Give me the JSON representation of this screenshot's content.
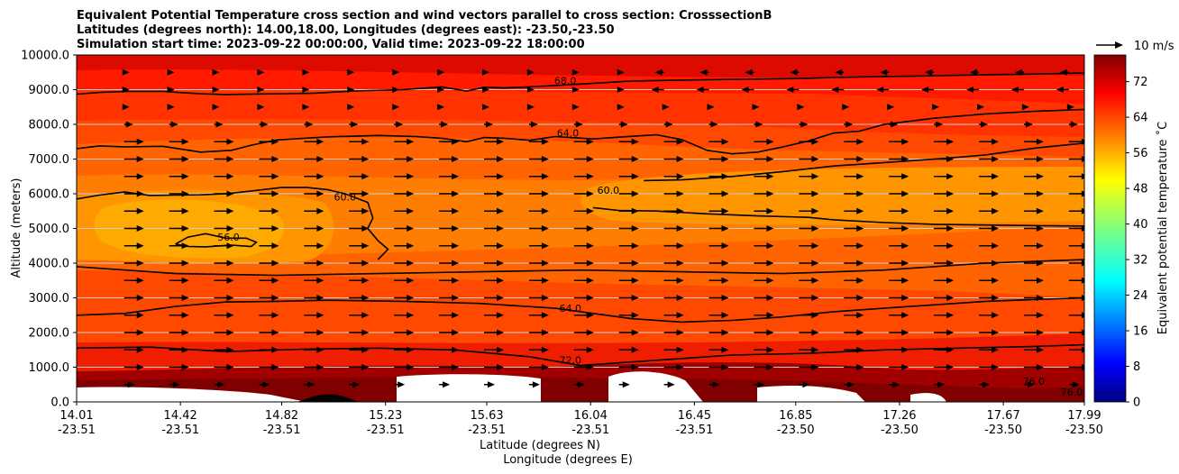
{
  "chart_data": {
    "type": "heatmap",
    "title_lines": [
      "Equivalent Potential Temperature cross section and wind vectors parallel to cross section: CrosssectionB",
      "Latitudes (degrees north): 14.00,18.00, Longitudes (degrees east): -23.50,-23.50",
      "Simulation start time: 2023-09-22 00:00:00, Valid time: 2023-09-22 18:00:00"
    ],
    "ylabel": "Altitude (meters)",
    "xlabel_lat": "Latitude (degrees N)",
    "xlabel_lon": "Longitude (degrees E)",
    "ylim": [
      0,
      10000
    ],
    "yticks": [
      "0.0",
      "1000.0",
      "2000.0",
      "3000.0",
      "4000.0",
      "5000.0",
      "6000.0",
      "7000.0",
      "8000.0",
      "9000.0",
      "10000.0"
    ],
    "ytick_values": [
      0,
      1000,
      2000,
      3000,
      4000,
      5000,
      6000,
      7000,
      8000,
      9000,
      10000
    ],
    "xlim": [
      14.01,
      17.99
    ],
    "xticks": [
      {
        "lat": "14.01",
        "lon": "-23.51",
        "value": 14.01
      },
      {
        "lat": "14.42",
        "lon": "-23.51",
        "value": 14.42
      },
      {
        "lat": "14.82",
        "lon": "-23.51",
        "value": 14.82
      },
      {
        "lat": "15.23",
        "lon": "-23.51",
        "value": 15.23
      },
      {
        "lat": "15.63",
        "lon": "-23.51",
        "value": 15.63
      },
      {
        "lat": "16.04",
        "lon": "-23.51",
        "value": 16.04
      },
      {
        "lat": "16.45",
        "lon": "-23.51",
        "value": 16.45
      },
      {
        "lat": "16.85",
        "lon": "-23.50",
        "value": 16.85
      },
      {
        "lat": "17.26",
        "lon": "-23.50",
        "value": 17.26
      },
      {
        "lat": "17.67",
        "lon": "-23.50",
        "value": 17.67
      },
      {
        "lat": "17.99",
        "lon": "-23.50",
        "value": 17.99
      }
    ],
    "colorbar": {
      "label": "Equivalent potential temperature $^\\circ$C",
      "label_display": "Equivalent potential temperature ˚C",
      "range": [
        0,
        78
      ],
      "ticks": [
        "0",
        "8",
        "16",
        "24",
        "32",
        "40",
        "48",
        "56",
        "64",
        "72"
      ],
      "tick_values": [
        0,
        8,
        16,
        24,
        32,
        40,
        48,
        56,
        64,
        72
      ],
      "colormap": "jet"
    },
    "quiver_key": {
      "label": "10 m/s",
      "value": 10
    },
    "grid": "horizontal",
    "contour_labels": [
      {
        "text": "68.0",
        "x": 15.94,
        "y": 9150
      },
      {
        "text": "64.0",
        "x": 15.95,
        "y": 7650
      },
      {
        "text": "60.0",
        "x": 15.07,
        "y": 5800
      },
      {
        "text": "60.0",
        "x": 16.11,
        "y": 6000
      },
      {
        "text": "56.0",
        "x": 14.61,
        "y": 4650
      },
      {
        "text": "64.0",
        "x": 15.96,
        "y": 2600
      },
      {
        "text": "72.0",
        "x": 15.96,
        "y": 1100
      },
      {
        "text": "76.0",
        "x": 17.79,
        "y": 500
      },
      {
        "text": "76.0",
        "x": 17.94,
        "y": 180
      }
    ],
    "contours": [
      {
        "level": "68.0",
        "x": [
          14.01,
          14.1,
          14.2,
          14.35,
          14.5,
          14.6,
          14.8,
          14.95,
          15.1,
          15.3,
          15.45,
          15.55,
          15.62,
          15.7,
          15.8,
          16.0,
          16.2,
          16.45,
          16.65,
          16.85,
          17.0,
          17.2,
          17.4,
          17.6,
          17.8,
          17.99
        ],
        "y": [
          8870,
          8920,
          8950,
          8950,
          8880,
          8860,
          8880,
          8900,
          8960,
          9000,
          9080,
          8960,
          9070,
          9050,
          9080,
          9160,
          9250,
          9280,
          9300,
          9320,
          9350,
          9380,
          9400,
          9430,
          9450,
          9480
        ]
      },
      {
        "level": "64.0",
        "x": [
          14.01,
          14.1,
          14.2,
          14.35,
          14.5,
          14.62,
          14.7,
          14.8,
          15.0,
          15.2,
          15.35,
          15.45,
          15.55,
          15.62,
          15.7,
          15.8,
          15.9,
          16.05,
          16.15,
          16.3,
          16.4,
          16.5,
          16.6,
          16.7,
          16.8,
          16.9,
          17.0,
          17.1,
          17.2,
          17.4,
          17.6,
          17.8,
          17.99
        ],
        "y": [
          7300,
          7380,
          7350,
          7370,
          7200,
          7250,
          7400,
          7550,
          7640,
          7680,
          7650,
          7600,
          7500,
          7620,
          7600,
          7540,
          7650,
          7580,
          7630,
          7700,
          7560,
          7250,
          7150,
          7200,
          7350,
          7520,
          7750,
          7800,
          8000,
          8180,
          8300,
          8380,
          8430
        ]
      },
      {
        "level": "60.0 (west)",
        "x": [
          14.01,
          14.1,
          14.2,
          14.3,
          14.4,
          14.5,
          14.6,
          14.7,
          14.82,
          14.92,
          15.0,
          15.07,
          15.16,
          15.18,
          15.16,
          15.2,
          15.24,
          15.2
        ],
        "y": [
          5850,
          5960,
          6050,
          5950,
          5960,
          5970,
          6000,
          6080,
          6180,
          6180,
          6120,
          6000,
          5750,
          5300,
          5000,
          4650,
          4400,
          4100
        ]
      },
      {
        "level": "60.0 (east)",
        "x": [
          16.05,
          16.15,
          16.3,
          16.5,
          16.7,
          16.9,
          17.0,
          17.2,
          17.4,
          17.6,
          17.8,
          17.99
        ],
        "y": [
          5600,
          5520,
          5500,
          5420,
          5360,
          5320,
          5250,
          5170,
          5120,
          5100,
          5080,
          5070
        ]
      },
      {
        "level": "60.0 (east upper)",
        "x": [
          16.25,
          16.4,
          16.6,
          16.8,
          17.0,
          17.2,
          17.4,
          17.6,
          17.8,
          17.99
        ],
        "y": [
          6380,
          6400,
          6500,
          6640,
          6800,
          6900,
          7000,
          7120,
          7320,
          7460
        ]
      },
      {
        "level": "56.0",
        "x": [
          14.4,
          14.45,
          14.52,
          14.6,
          14.68,
          14.72,
          14.7,
          14.62,
          14.52,
          14.45,
          14.4
        ],
        "y": [
          4550,
          4750,
          4850,
          4720,
          4720,
          4600,
          4480,
          4520,
          4470,
          4480,
          4550
        ]
      },
      {
        "level": "64.0 (low)",
        "x": [
          14.01,
          14.2,
          14.4,
          14.6,
          14.8,
          15.0,
          15.3,
          15.6,
          15.9,
          16.05,
          16.2,
          16.4,
          16.6,
          16.8,
          17.0,
          17.3,
          17.6,
          17.99
        ],
        "y": [
          2500,
          2550,
          2750,
          2880,
          2900,
          2930,
          2900,
          2840,
          2700,
          2550,
          2400,
          2300,
          2350,
          2450,
          2600,
          2750,
          2900,
          3000
        ]
      },
      {
        "level": "68.0 (low)",
        "x": [
          14.01,
          14.4,
          14.8,
          15.2,
          15.6,
          16.0,
          16.4,
          16.8,
          17.2,
          17.6,
          17.99
        ],
        "y": [
          3900,
          3700,
          3650,
          3700,
          3750,
          3800,
          3750,
          3700,
          3800,
          4000,
          4100
        ]
      },
      {
        "level": "72.0",
        "x": [
          14.01,
          14.3,
          14.6,
          14.9,
          15.2,
          15.5,
          15.8,
          16.0,
          16.3,
          16.6,
          16.9,
          17.2,
          17.5,
          17.8,
          17.99
        ],
        "y": [
          1550,
          1580,
          1450,
          1520,
          1550,
          1500,
          1300,
          1050,
          1200,
          1350,
          1400,
          1500,
          1550,
          1600,
          1650
        ]
      }
    ],
    "wind_vectors": "rightward (parallel to cross section) at low and mid levels, leftward near 9000-10000 m on the eastern side"
  }
}
